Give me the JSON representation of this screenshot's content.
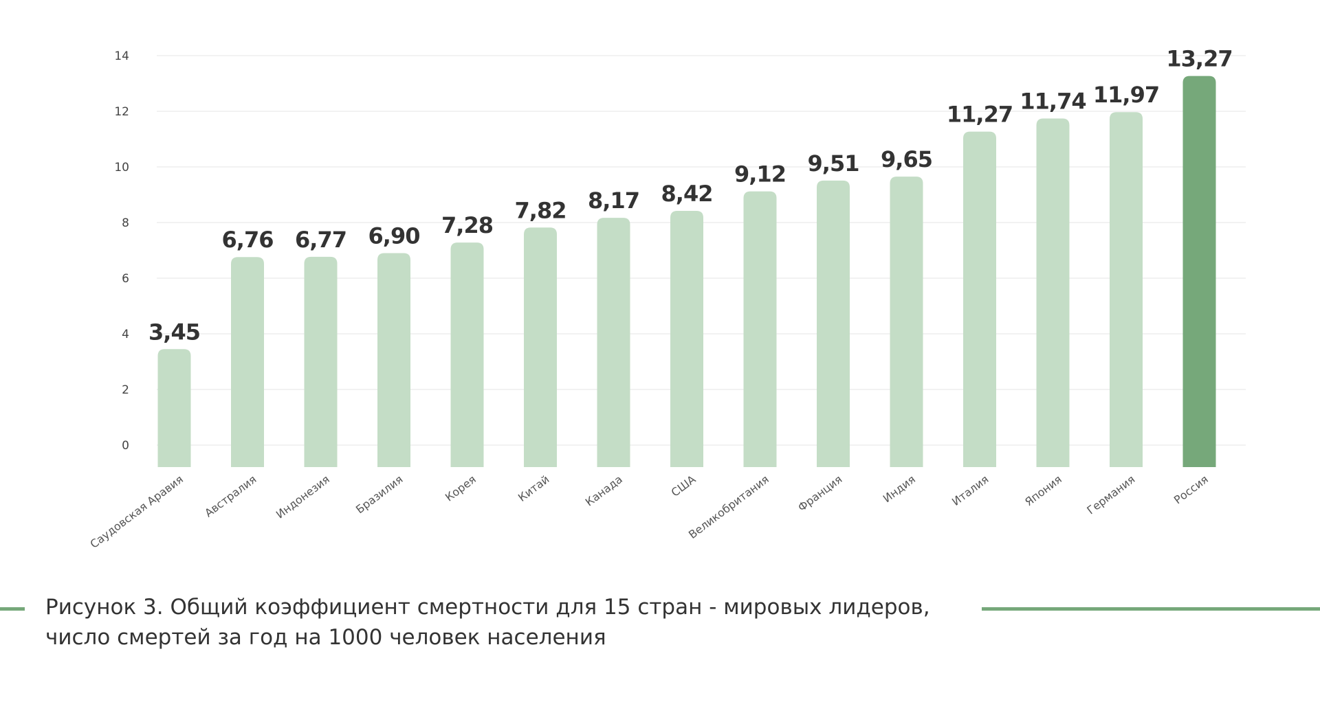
{
  "colors": {
    "bar": "#c4ddc6",
    "highlight_bar": "#76a87a",
    "highlight_label": "#76a87a",
    "value_label": "#333333",
    "grid": "#e6e6e6",
    "decor_line": "#76a87a"
  },
  "caption": {
    "line1": "Рисунок 3. Общий коэффициент смертности для 15 стран - мировых лидеров,",
    "line2": "число смертей за год на 1000 человек населения"
  },
  "chart_data": {
    "type": "bar",
    "title": "",
    "xlabel": "",
    "ylabel": "",
    "ylim": [
      0,
      14
    ],
    "yticks": [
      0,
      2,
      4,
      6,
      8,
      10,
      12,
      14
    ],
    "grid": true,
    "legend": "none",
    "categories": [
      "Саудовская Аравия",
      "Австралия",
      "Индонезия",
      "Бразилия",
      "Корея",
      "Китай",
      "Канада",
      "США",
      "Великобритания",
      "Франция",
      "Индия",
      "Италия",
      "Япония",
      "Германия",
      "Россия"
    ],
    "values": [
      3.45,
      6.76,
      6.77,
      6.9,
      7.28,
      7.82,
      8.17,
      8.42,
      9.12,
      9.51,
      9.65,
      11.27,
      11.74,
      11.97,
      13.27
    ],
    "value_labels": [
      "3,45",
      "6,76",
      "6,77",
      "6,90",
      "7,28",
      "7,82",
      "8,17",
      "8,42",
      "9,12",
      "9,51",
      "9,65",
      "11,27",
      "11,74",
      "11,97",
      "13,27"
    ],
    "highlight": "Россия"
  }
}
